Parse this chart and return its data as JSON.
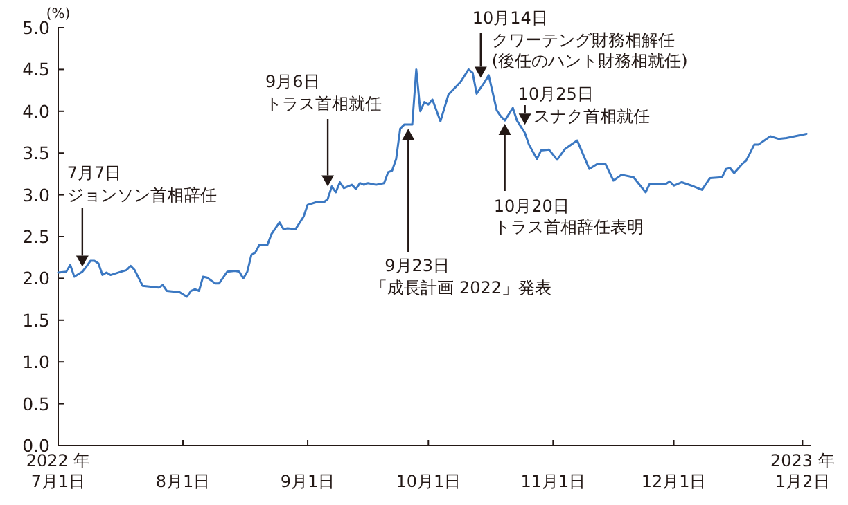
{
  "chart_data": {
    "type": "line",
    "ylabel": "(%)",
    "xlim": [
      "2022-07-01",
      "2023-01-04"
    ],
    "xticks": [
      {
        "value": "2022-07-01",
        "label": "2022 年\n7月1日"
      },
      {
        "value": "2022-08-01",
        "label": "8月1日"
      },
      {
        "value": "2022-09-01",
        "label": "9月1日"
      },
      {
        "value": "2022-10-01",
        "label": "10月1日"
      },
      {
        "value": "2022-11-01",
        "label": "11月1日"
      },
      {
        "value": "2022-12-01",
        "label": "12月1日"
      },
      {
        "value": "2023-01-02",
        "label": "2023 年\n1月2日"
      }
    ],
    "ylim": [
      0,
      5
    ],
    "yticks": [
      {
        "value": 0,
        "label": "0.0"
      },
      {
        "value": 0.5,
        "label": "0.5"
      },
      {
        "value": 1,
        "label": "1.0"
      },
      {
        "value": 1.5,
        "label": "1.5"
      },
      {
        "value": 2,
        "label": "2.0"
      },
      {
        "value": 2.5,
        "label": "2.5"
      },
      {
        "value": 3,
        "label": "3.0"
      },
      {
        "value": 3.5,
        "label": "3.5"
      },
      {
        "value": 4,
        "label": "4.0"
      },
      {
        "value": 4.5,
        "label": "4.5"
      },
      {
        "value": 5,
        "label": "5.0"
      }
    ],
    "grid": false,
    "marker": "none",
    "line_style": "solid",
    "x": [
      "2022-07-01",
      "2022-07-03",
      "2022-07-04",
      "2022-07-05",
      "2022-07-07",
      "2022-07-08",
      "2022-07-09",
      "2022-07-10",
      "2022-07-11",
      "2022-07-12",
      "2022-07-13",
      "2022-07-14",
      "2022-07-16",
      "2022-07-18",
      "2022-07-19",
      "2022-07-20",
      "2022-07-22",
      "2022-07-24",
      "2022-07-26",
      "2022-07-27",
      "2022-07-28",
      "2022-07-30",
      "2022-07-31",
      "2022-08-02",
      "2022-08-03",
      "2022-08-04",
      "2022-08-05",
      "2022-08-06",
      "2022-08-07",
      "2022-08-09",
      "2022-08-10",
      "2022-08-12",
      "2022-08-14",
      "2022-08-15",
      "2022-08-16",
      "2022-08-17",
      "2022-08-18",
      "2022-08-19",
      "2022-08-20",
      "2022-08-22",
      "2022-08-23",
      "2022-08-25",
      "2022-08-26",
      "2022-08-27",
      "2022-08-29",
      "2022-08-31",
      "2022-09-01",
      "2022-09-03",
      "2022-09-05",
      "2022-09-06",
      "2022-09-07",
      "2022-09-08",
      "2022-09-09",
      "2022-09-10",
      "2022-09-12",
      "2022-09-13",
      "2022-09-14",
      "2022-09-15",
      "2022-09-16",
      "2022-09-18",
      "2022-09-20",
      "2022-09-21",
      "2022-09-22",
      "2022-09-23",
      "2022-09-24",
      "2022-09-25",
      "2022-09-27",
      "2022-09-28",
      "2022-09-29",
      "2022-09-30",
      "2022-10-01",
      "2022-10-02",
      "2022-10-04",
      "2022-10-06",
      "2022-10-09",
      "2022-10-11",
      "2022-10-12",
      "2022-10-13",
      "2022-10-15",
      "2022-10-16",
      "2022-10-18",
      "2022-10-19",
      "2022-10-20",
      "2022-10-22",
      "2022-10-23",
      "2022-10-25",
      "2022-10-26",
      "2022-10-28",
      "2022-10-29",
      "2022-10-31",
      "2022-11-02",
      "2022-11-04",
      "2022-11-07",
      "2022-11-10",
      "2022-11-12",
      "2022-11-14",
      "2022-11-16",
      "2022-11-18",
      "2022-11-21",
      "2022-11-24",
      "2022-11-25",
      "2022-11-29",
      "2022-11-30",
      "2022-12-01",
      "2022-12-03",
      "2022-12-06",
      "2022-12-08",
      "2022-12-10",
      "2022-12-13",
      "2022-12-14",
      "2022-12-15",
      "2022-12-16",
      "2022-12-18",
      "2022-12-19",
      "2022-12-21",
      "2022-12-22",
      "2022-12-25",
      "2022-12-27",
      "2022-12-29",
      "2023-01-03"
    ],
    "series": [
      {
        "color": "#3b78c2",
        "values": [
          2.07,
          2.08,
          2.16,
          2.02,
          2.08,
          2.14,
          2.21,
          2.21,
          2.18,
          2.04,
          2.07,
          2.04,
          2.07,
          2.1,
          2.15,
          2.1,
          1.91,
          1.9,
          1.89,
          1.92,
          1.85,
          1.84,
          1.84,
          1.78,
          1.85,
          1.87,
          1.85,
          2.02,
          2.01,
          1.94,
          1.94,
          2.08,
          2.09,
          2.08,
          2.0,
          2.08,
          2.28,
          2.31,
          2.4,
          2.4,
          2.53,
          2.67,
          2.59,
          2.6,
          2.59,
          2.74,
          2.88,
          2.91,
          2.91,
          2.95,
          3.1,
          3.03,
          3.15,
          3.08,
          3.12,
          3.07,
          3.14,
          3.12,
          3.14,
          3.12,
          3.14,
          3.27,
          3.29,
          3.43,
          3.79,
          3.84,
          3.84,
          4.5,
          4.0,
          4.11,
          4.08,
          4.14,
          3.88,
          4.2,
          4.35,
          4.5,
          4.46,
          4.21,
          4.35,
          4.43,
          4.01,
          3.94,
          3.89,
          4.04,
          3.89,
          3.74,
          3.6,
          3.43,
          3.53,
          3.54,
          3.42,
          3.55,
          3.65,
          3.31,
          3.37,
          3.37,
          3.17,
          3.24,
          3.21,
          3.03,
          3.13,
          3.13,
          3.16,
          3.11,
          3.15,
          3.1,
          3.06,
          3.2,
          3.21,
          3.31,
          3.32,
          3.26,
          3.37,
          3.41,
          3.6,
          3.6,
          3.7,
          3.67,
          3.68,
          3.73
        ]
      }
    ],
    "annotations": [
      "7月7日",
      {
        "text": "ジョンソン首相辞任",
        "x": "2022-07-07",
        "y": 2.14
      },
      "9月6日",
      {
        "text": "トラス首相就任",
        "x": "2022-09-06",
        "y": 3.1
      },
      {
        "text": "9月23日",
        "x": "2022-09-26",
        "y": 3.79
      },
      "「成長計画 2022」発表",
      {
        "text": "10月14日",
        "x": "2022-10-14",
        "y": 4.4
      },
      "クワーテング財務相解任",
      "(後任のハント財務相就任)",
      {
        "text": "10月20日",
        "x": "2022-10-20",
        "y": 3.85
      },
      "トラス首相辞任表明",
      {
        "text": "10月25日",
        "x": "2022-10-25",
        "y": 3.84
      },
      "スナク首相就任"
    ]
  }
}
